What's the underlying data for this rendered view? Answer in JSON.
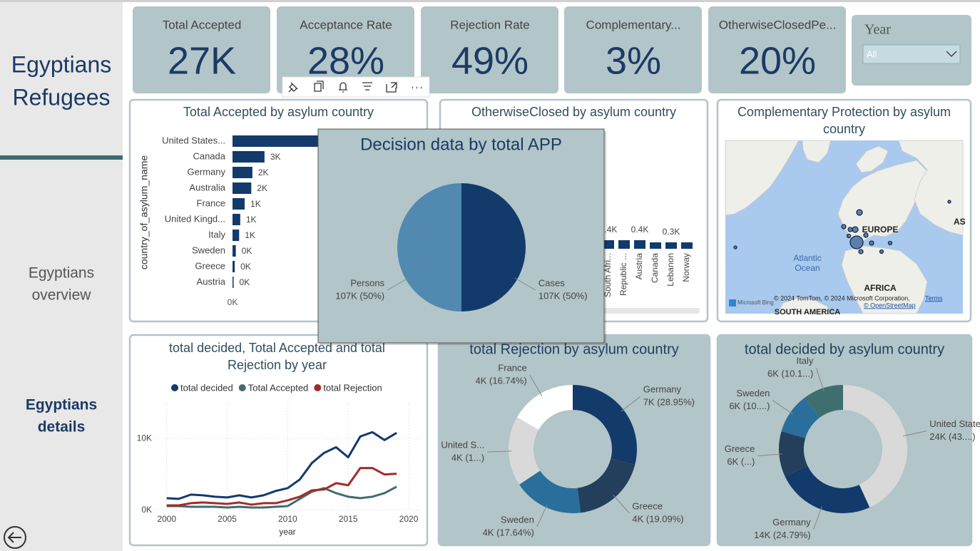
{
  "sidebar": {
    "title_lines": [
      "Egyptians",
      "Refugees"
    ],
    "nav": [
      {
        "lines": [
          "Egyptians",
          "overview"
        ],
        "active": false
      },
      {
        "lines": [
          "Egyptians",
          "details"
        ],
        "active": true
      }
    ]
  },
  "kpis": [
    {
      "label": "Total Accepted",
      "value": "27K"
    },
    {
      "label": "Acceptance Rate",
      "value": "28%"
    },
    {
      "label": "Rejection Rate",
      "value": "49%"
    },
    {
      "label": "Complementary...",
      "value": "3%"
    },
    {
      "label": "OtherwiseClosedPe...",
      "value": "20%"
    }
  ],
  "year_filter": {
    "label": "Year",
    "selected": "All"
  },
  "chart_data": [
    {
      "type": "bar",
      "orientation": "horizontal",
      "title": "Total Accepted by asylum country",
      "y_label": "country_of_asylum_name",
      "categories": [
        "United States...",
        "Canada",
        "Germany",
        "Australia",
        "France",
        "United Kingd...",
        "Italy",
        "Sweden",
        "Greece",
        "Austria"
      ],
      "values": [
        15000,
        2900,
        1800,
        1700,
        1100,
        700,
        600,
        300,
        200,
        100
      ],
      "value_labels": [
        null,
        "3K",
        "2K",
        "2K",
        "1K",
        "1K",
        "1K",
        "0K",
        "0K",
        "0K"
      ],
      "color": "#123a6b",
      "xlim": [
        0,
        17000
      ],
      "xticks": [
        {
          "value": 0,
          "label": "0K"
        }
      ]
    },
    {
      "type": "bar",
      "orientation": "vertical",
      "title": "OtherwiseClosed by asylum country",
      "categories": [
        "South Afri...",
        "Republic ...",
        "Austria",
        "Canada",
        "Lebanon",
        "Norway"
      ],
      "values": [
        400,
        400,
        400,
        300,
        300,
        300
      ],
      "value_labels": [
        "0.4K",
        null,
        "0.4K",
        null,
        "0.3K",
        null
      ],
      "color": "#123a6b",
      "ylim": [
        0,
        6000
      ]
    },
    {
      "type": "map",
      "title_lines": [
        "Complementary Protection by asylum",
        "country"
      ],
      "labels": {
        "europe": "EUROPE",
        "africa": "AFRICA",
        "south_america": "SOUTH AMERICA",
        "asia": "AS",
        "ocean_lines": [
          "Atlantic",
          "Ocean"
        ]
      },
      "attribution": {
        "brand": "Microsoft Bing",
        "copyright": "© 2024 TomTom, © 2024 Microsoft Corporation,",
        "terms": "Terms",
        "osm": "© OpenStreetMap"
      }
    },
    {
      "type": "line",
      "title_lines": [
        "total decided, Total Accepted and total",
        "Rejection by year"
      ],
      "x_label": "year",
      "x": [
        2000,
        2001,
        2002,
        2003,
        2004,
        2005,
        2006,
        2007,
        2008,
        2009,
        2010,
        2011,
        2012,
        2013,
        2014,
        2015,
        2016,
        2017,
        2018,
        2019
      ],
      "series": [
        {
          "name": "total decided",
          "color": "#123a6b",
          "values": [
            1700,
            1600,
            2200,
            2100,
            1900,
            1800,
            2100,
            1800,
            2100,
            2700,
            3100,
            4300,
            6600,
            8000,
            8800,
            7400,
            10300,
            10900,
            9800,
            10800
          ]
        },
        {
          "name": "Total Accepted",
          "color": "#3f6e6e",
          "values": [
            600,
            600,
            500,
            500,
            500,
            400,
            500,
            400,
            400,
            500,
            600,
            1600,
            2600,
            3100,
            2400,
            1900,
            1700,
            1900,
            2400,
            3300
          ]
        },
        {
          "name": "total Rejection",
          "color": "#a52a2a",
          "values": [
            700,
            700,
            1000,
            1100,
            1000,
            900,
            1100,
            800,
            1000,
            1000,
            1400,
            1900,
            2800,
            2900,
            3800,
            3500,
            5900,
            5900,
            5000,
            5100
          ]
        }
      ],
      "xlim": [
        1998.9,
        2021
      ],
      "ylim": [
        0,
        15000
      ],
      "xticks": [
        2000,
        2005,
        2010,
        2015,
        2020
      ],
      "yticks": [
        {
          "value": 0,
          "label": "0K"
        },
        {
          "value": 10000,
          "label": "10K"
        }
      ],
      "grid": true
    },
    {
      "type": "donut",
      "title": "total Rejection by asylum country",
      "categories": [
        "Germany",
        "Greece",
        "Sweden",
        "United S...",
        "France"
      ],
      "values": [
        6660,
        4392,
        4058,
        4044,
        3851
      ],
      "value_labels": [
        "7K (28.95%)",
        "4K (19.09%)",
        "4K (17.64%)",
        "4K (1...)",
        "4K (16.74%)"
      ],
      "colors": [
        "#123a6b",
        "#243f5c",
        "#2a6f9b",
        "#d9d9d9",
        "#ffffff"
      ]
    },
    {
      "type": "donut",
      "title": "total decided by asylum country",
      "categories": [
        "United State...",
        "Germany",
        "Greece",
        "Sweden",
        "Italy"
      ],
      "values": [
        24400,
        14000,
        6484,
        5850,
        5740
      ],
      "value_labels": [
        "24K (43....)",
        "14K (24.79%)",
        "6K (...)",
        "6K (10....)",
        "6K (10.1...)"
      ],
      "colors": [
        "#d9d9d9",
        "#123a6b",
        "#243f5c",
        "#2a6f9b",
        "#3e6e6e"
      ]
    },
    {
      "type": "pie",
      "title": "Decision data by total APP",
      "categories": [
        "Cases",
        "Persons"
      ],
      "values": [
        107000,
        107000
      ],
      "value_labels": [
        "107K (50%)",
        "107K (50%)"
      ],
      "colors": [
        "#123a6b",
        "#5189b0"
      ]
    }
  ]
}
